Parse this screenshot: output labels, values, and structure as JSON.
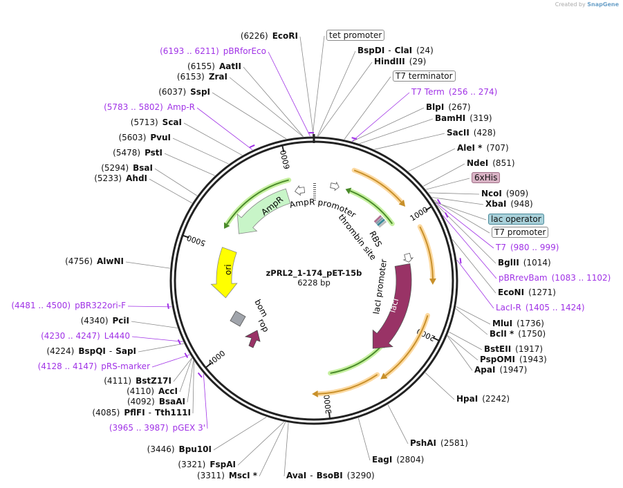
{
  "watermark": {
    "created_by": "Created by",
    "brand": "SnapGene"
  },
  "plasmid": {
    "title": "zPRL2_1-174_pET-15b",
    "length": "6228 bp",
    "length_bp": 6228
  },
  "separator": "-",
  "ticks": [
    "1000",
    "2000",
    "3000",
    "4000",
    "5000",
    "6000"
  ],
  "sites": [
    {
      "name": "BspDI",
      "name2": "ClaI",
      "pos": "(24)",
      "bp": 24
    },
    {
      "name": "HindIII",
      "pos": "(29)",
      "bp": 29
    },
    {
      "name": "BlpI",
      "pos": "(267)",
      "bp": 267
    },
    {
      "name": "BamHI",
      "pos": "(319)",
      "bp": 319
    },
    {
      "name": "SacII",
      "pos": "(428)",
      "bp": 428
    },
    {
      "name": "AleI *",
      "pos": "(707)",
      "bp": 707
    },
    {
      "name": "NdeI",
      "pos": "(851)",
      "bp": 851
    },
    {
      "name": "NcoI",
      "pos": "(909)",
      "bp": 909
    },
    {
      "name": "XbaI",
      "pos": "(948)",
      "bp": 948
    },
    {
      "name": "BglII",
      "pos": "(1014)",
      "bp": 1014
    },
    {
      "name": "EcoNI",
      "pos": "(1271)",
      "bp": 1271
    },
    {
      "name": "MluI",
      "pos": "(1736)",
      "bp": 1736
    },
    {
      "name": "BclI *",
      "pos": "(1750)",
      "bp": 1750
    },
    {
      "name": "BstEII",
      "pos": "(1917)",
      "bp": 1917
    },
    {
      "name": "PspOMI",
      "pos": "(1943)",
      "bp": 1943
    },
    {
      "name": "ApaI",
      "pos": "(1947)",
      "bp": 1947
    },
    {
      "name": "HpaI",
      "pos": "(2242)",
      "bp": 2242
    },
    {
      "name": "PshAI",
      "pos": "(2581)",
      "bp": 2581
    },
    {
      "name": "EagI",
      "pos": "(2804)",
      "bp": 2804
    },
    {
      "name": "AvaI",
      "name2": "BsoBI",
      "pos": "(3290)",
      "bp": 3290
    },
    {
      "name": "MscI *",
      "pos": "(3311)",
      "bp": 3311
    },
    {
      "name": "FspAI",
      "pos": "(3321)",
      "bp": 3321
    },
    {
      "name": "Bpu10I",
      "pos": "(3446)",
      "bp": 3446
    },
    {
      "name": "PflFI",
      "name2": "Tth111I",
      "pos": "(4085)",
      "bp": 4085
    },
    {
      "name": "BsaAI",
      "pos": "(4092)",
      "bp": 4092
    },
    {
      "name": "AccI",
      "pos": "(4110)",
      "bp": 4110
    },
    {
      "name": "BstZ17I",
      "pos": "(4111)",
      "bp": 4111
    },
    {
      "name": "BspQI",
      "name2": "SapI",
      "pos": "(4224)",
      "bp": 4224
    },
    {
      "name": "PciI",
      "pos": "(4340)",
      "bp": 4340
    },
    {
      "name": "AlwNI",
      "pos": "(4756)",
      "bp": 4756
    },
    {
      "name": "AhdI",
      "pos": "(5233)",
      "bp": 5233
    },
    {
      "name": "BsaI",
      "pos": "(5294)",
      "bp": 5294
    },
    {
      "name": "PstI",
      "pos": "(5478)",
      "bp": 5478
    },
    {
      "name": "PvuI",
      "pos": "(5603)",
      "bp": 5603
    },
    {
      "name": "ScaI",
      "pos": "(5713)",
      "bp": 5713
    },
    {
      "name": "SspI",
      "pos": "(6037)",
      "bp": 6037
    },
    {
      "name": "ZraI",
      "pos": "(6153)",
      "bp": 6153
    },
    {
      "name": "AatII",
      "pos": "(6155)",
      "bp": 6155
    },
    {
      "name": "EcoRI",
      "pos": "(6226)",
      "bp": 6226
    }
  ],
  "primers": [
    {
      "name": "T7 Term",
      "range": "(256 .. 274)",
      "start": 256,
      "end": 274
    },
    {
      "name": "T7",
      "range": "(980 .. 999)",
      "start": 980,
      "end": 999
    },
    {
      "name": "pBRrevBam",
      "range": "(1083 .. 1102)",
      "start": 1083,
      "end": 1102
    },
    {
      "name": "LacI-R",
      "range": "(1405 .. 1424)",
      "start": 1405,
      "end": 1424
    },
    {
      "name": "pGEX 3'",
      "range": "(3965 .. 3987)",
      "start": 3965,
      "end": 3987
    },
    {
      "name": "pRS-marker",
      "range": "(4128 .. 4147)",
      "start": 4128,
      "end": 4147
    },
    {
      "name": "L4440",
      "range": "(4230 .. 4247)",
      "start": 4230,
      "end": 4247
    },
    {
      "name": "pBR322ori-F",
      "range": "(4481 .. 4500)",
      "start": 4481,
      "end": 4500
    },
    {
      "name": "Amp-R",
      "range": "(5783 .. 5802)",
      "start": 5783,
      "end": 5802
    },
    {
      "name": "pBRforEco",
      "range": "(6193 .. 6211)",
      "start": 6193,
      "end": 6211
    }
  ],
  "boxed_features": [
    {
      "name": "tet promoter",
      "bp": 6218,
      "color": "#ffffff",
      "border": "#888888"
    },
    {
      "name": "T7 terminator",
      "bp": 210,
      "color": "#ffffff",
      "border": "#888888"
    },
    {
      "name": "6xHis",
      "bp": 880,
      "color": "#d9b3c5",
      "border": "#a07088"
    },
    {
      "name": "lac operator",
      "bp": 990,
      "color": "#a9d1da",
      "border": "#4a8a9a"
    },
    {
      "name": "T7 promoter",
      "bp": 970,
      "color": "#ffffff",
      "border": "#888888"
    }
  ],
  "features": {
    "ampr_promoter": "AmpR promoter",
    "ampr": "AmpR",
    "ori": "ori",
    "bom": "bom",
    "rop": "rop",
    "laci": "lacI",
    "laci_promoter": "lacI promoter",
    "rbs": "RBS",
    "thrombin": "thrombin site"
  },
  "colors": {
    "primer": "#a032e6",
    "ampr": "#c8f5c8",
    "ori": "#ffff00",
    "laci": "#993366",
    "rop": "#993366",
    "bom": "#a0a4ab",
    "orf_orange": "#c8902a",
    "orf_green": "#4a8a2a"
  }
}
